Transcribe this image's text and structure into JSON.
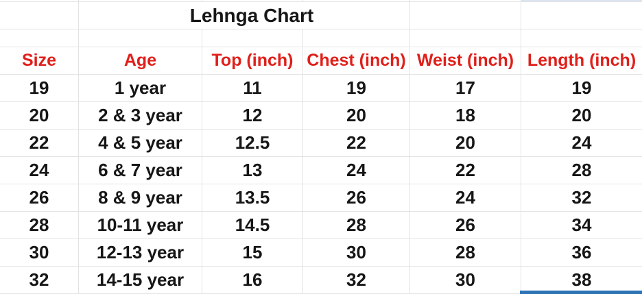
{
  "title": "Lehnga Chart",
  "table": {
    "columns": [
      "Size",
      "Age",
      "Top (inch)",
      "Chest (inch)",
      "Weist (inch)",
      "Length (inch)"
    ],
    "rows": [
      [
        "19",
        "1 year",
        "11",
        "19",
        "17",
        "19"
      ],
      [
        "20",
        "2 & 3 year",
        "12",
        "20",
        "18",
        "20"
      ],
      [
        "22",
        "4 & 5 year",
        "12.5",
        "22",
        "20",
        "24"
      ],
      [
        "24",
        "6 & 7 year",
        "13",
        "24",
        "22",
        "28"
      ],
      [
        "26",
        "8 & 9 year",
        "13.5",
        "26",
        "24",
        "32"
      ],
      [
        "28",
        "10-11 year",
        "14.5",
        "28",
        "26",
        "34"
      ],
      [
        "30",
        "12-13 year",
        "15",
        "30",
        "28",
        "36"
      ],
      [
        "32",
        "14-15 year",
        "16",
        "32",
        "30",
        "38"
      ]
    ]
  },
  "colors": {
    "header_text": "#e01f1a",
    "body_text": "#161616",
    "gridline": "#e3e3e3",
    "selection_border": "#2e74b5",
    "selection_fill": "#dbe5f1"
  }
}
